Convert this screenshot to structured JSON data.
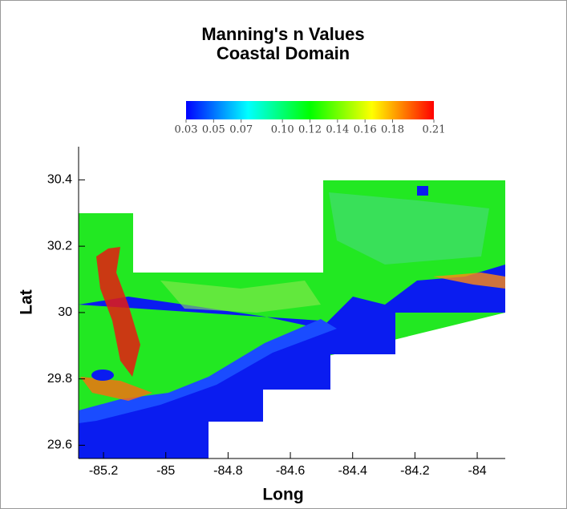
{
  "chart_data": {
    "type": "raster",
    "title": [
      "Manning's n Values",
      "Coastal Domain"
    ],
    "x_label": "Long",
    "y_label": "Lat",
    "xlim": [
      -85.28,
      -83.91
    ],
    "xticks": [
      -85.2,
      -85,
      -84.8,
      -84.6,
      -84.4,
      -84.2,
      -84
    ],
    "ylim": [
      29.56,
      30.5
    ],
    "yticks": [
      29.6,
      29.8,
      30,
      30.2,
      30.4
    ],
    "colorbar": {
      "clim": [
        0.03,
        0.21
      ],
      "colors": [
        "#0000ff",
        "#0080ff",
        "#00ffff",
        "#00ff80",
        "#00ff00",
        "#80ff00",
        "#ffff00",
        "#ff8000",
        "#ff0000"
      ],
      "ticks": [
        0.03,
        0.05,
        0.07,
        {
          "value": 0.1,
          "label": "0.10"
        },
        0.12,
        0.14,
        0.16,
        0.18,
        0.21
      ]
    }
  }
}
